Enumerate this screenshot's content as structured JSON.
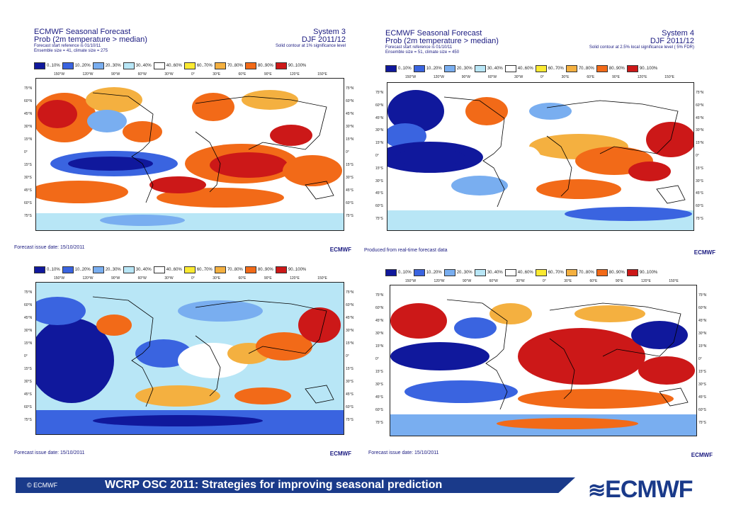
{
  "legend": {
    "labels": [
      "0..10%",
      "10..20%",
      "20..30%",
      "30..40%",
      "40..60%",
      "60..70%",
      "70..80%",
      "80..90%",
      "90..100%"
    ],
    "colors": [
      "#10189c",
      "#3a64e0",
      "#79aef0",
      "#b8e6f6",
      "#ffffff",
      "#fbea32",
      "#f4b040",
      "#f26a18",
      "#cc1818"
    ]
  },
  "lon_labels": [
    "150°W",
    "120°W",
    "90°W",
    "60°W",
    "30°W",
    "0°",
    "30°E",
    "60°E",
    "90°E",
    "120°E",
    "150°E"
  ],
  "lat_labels": [
    "75°N",
    "60°N",
    "45°N",
    "30°N",
    "15°N",
    "0°",
    "15°S",
    "30°S",
    "45°S",
    "60°S",
    "75°S"
  ],
  "panels": {
    "p1": {
      "title": "ECMWF Seasonal Forecast",
      "subtitle": "Prob (2m temperature > median)",
      "line3": "Forecast start reference is 01/10/11",
      "line4": "Ensemble size = 41, climate size = 275",
      "system": "System 3",
      "period": "DJF 2011/12",
      "contour": "Solid contour at 1% significance level",
      "issue": "Forecast issue date: 15/10/2011"
    },
    "p2": {
      "title": "ECMWF Seasonal Forecast",
      "subtitle": "Prob (2m temperature > median)",
      "line3": "Forecast start reference is 01/10/11",
      "line4": "Ensemble size = 51, climate size = 450",
      "system": "System 4",
      "period": "DJF 2011/12",
      "contour": "Solid contour at 2.5% local significance level ( 5% FDR)",
      "issue": "Produced from real-time forecast data"
    },
    "p3": {
      "issue": "Forecast issue date: 15/10/2011"
    },
    "p4": {
      "issue": "Forecast issue date: 15/10/2011"
    }
  },
  "small_logo": "ECMWF",
  "footer": {
    "copyright": "© ECMWF",
    "title": "WCRP OSC 2011: Strategies for improving seasonal prediction",
    "logo": "ECMWF"
  }
}
